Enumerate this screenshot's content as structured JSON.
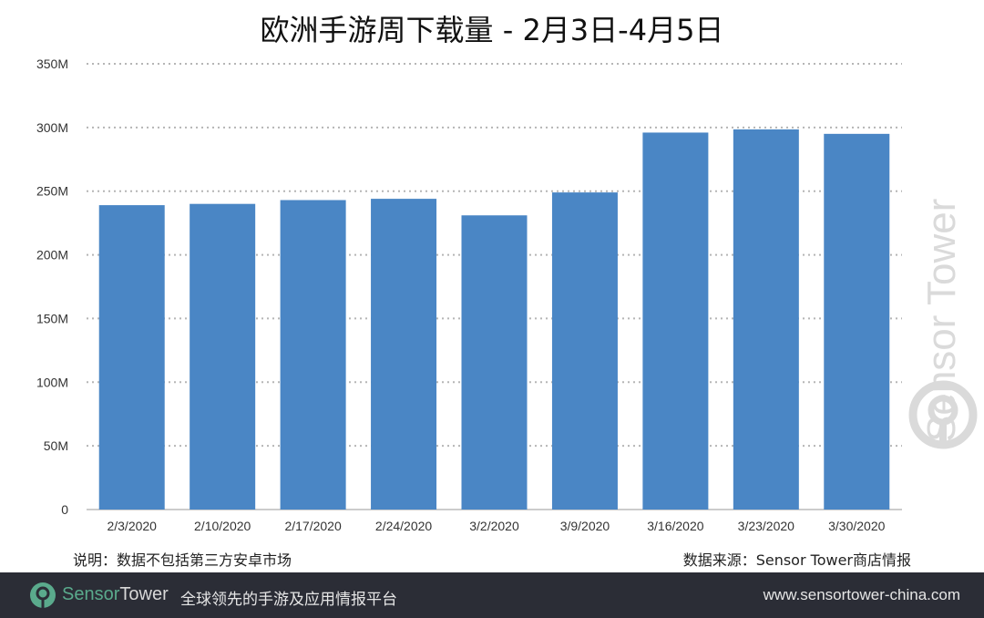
{
  "chart_data": {
    "type": "bar",
    "title": "欧洲手游周下载量 - 2月3日-4月5日",
    "categories": [
      "2/3/2020",
      "2/10/2020",
      "2/17/2020",
      "2/24/2020",
      "3/2/2020",
      "3/9/2020",
      "3/16/2020",
      "3/23/2020",
      "3/30/2020"
    ],
    "values": [
      239,
      240,
      243,
      244,
      231,
      249,
      296,
      298.5,
      295
    ],
    "unit": "M",
    "ylim": [
      0,
      350
    ],
    "yticks": [
      0,
      50,
      100,
      150,
      200,
      250,
      300,
      350
    ],
    "ytick_labels": [
      "0",
      "50M",
      "100M",
      "150M",
      "200M",
      "250M",
      "300M",
      "350M"
    ],
    "grid": "horizontal dotted",
    "bar_color": "#4a86c5",
    "xlabel": "",
    "ylabel": ""
  },
  "notes": {
    "left": "说明：数据不包括第三方安卓市场",
    "right": "数据来源：Sensor Tower商店情报"
  },
  "watermark": "SensorTower",
  "footer": {
    "brand_a": "Sensor",
    "brand_b": "Tower",
    "slogan": "全球领先的手游及应用情报平台",
    "url": "www.sensortower-china.com",
    "bg_color": "#2b2d36",
    "brand_color": "#5aaa8c"
  }
}
